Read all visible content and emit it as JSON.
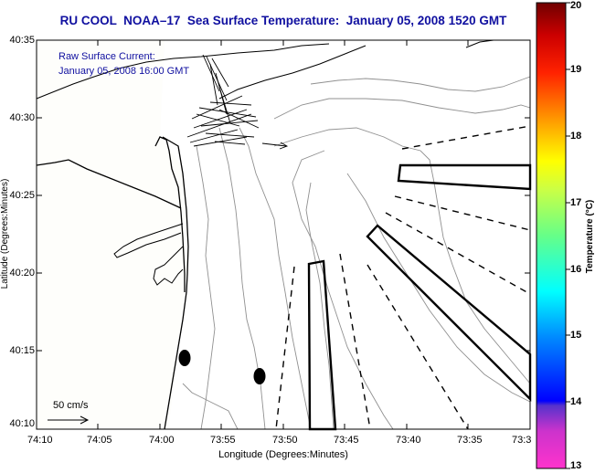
{
  "header": {
    "title": "RU COOL  NOAA–17  Sea Surface Temperature:  January 05, 2008 1520 GMT"
  },
  "annotation": {
    "line1": "Raw Surface Current:",
    "line2": "January 05, 2008 16:00 GMT"
  },
  "scale": {
    "label": "50 cm/s"
  },
  "axes": {
    "y_title": "Latitude (Degrees:Minutes)",
    "x_title": "Longitude (Degrees:Minutes)",
    "y_ticks": [
      "40:35",
      "40:30",
      "40:25",
      "40:20",
      "40:15",
      "40:10"
    ],
    "x_ticks": [
      "74:10",
      "74:05",
      "74:00",
      "73:55",
      "73:50",
      "73:45",
      "73:40",
      "73:35",
      "73:3"
    ]
  },
  "colorbar": {
    "title": "Temperature (°C)",
    "ticks": [
      "20",
      "19",
      "18",
      "17",
      "16",
      "15",
      "14",
      "13"
    ],
    "range": [
      13,
      20
    ],
    "colors": [
      "#ff33cc",
      "#9933cc",
      "#0000ff",
      "#00aaff",
      "#00ffff",
      "#66ff99",
      "#ffff00",
      "#ff9900",
      "#ff0000",
      "#cc0000",
      "#800000"
    ]
  },
  "chart_data": {
    "type": "map",
    "title": "RU COOL  NOAA–17  Sea Surface Temperature:  January 05, 2008 1520 GMT",
    "xlabel": "Longitude (Degrees:Minutes)",
    "ylabel": "Latitude (Degrees:Minutes)",
    "xlim": [
      "74:10",
      "73:30"
    ],
    "ylim": [
      "40:10",
      "40:35"
    ],
    "colorbar_range": [
      13,
      20
    ],
    "markers": [
      {
        "type": "filled-ellipse",
        "lon": "73:58.8",
        "lat": "40:14.5"
      },
      {
        "type": "filled-ellipse",
        "lon": "73:52.3",
        "lat": "40:13.5"
      }
    ]
  }
}
